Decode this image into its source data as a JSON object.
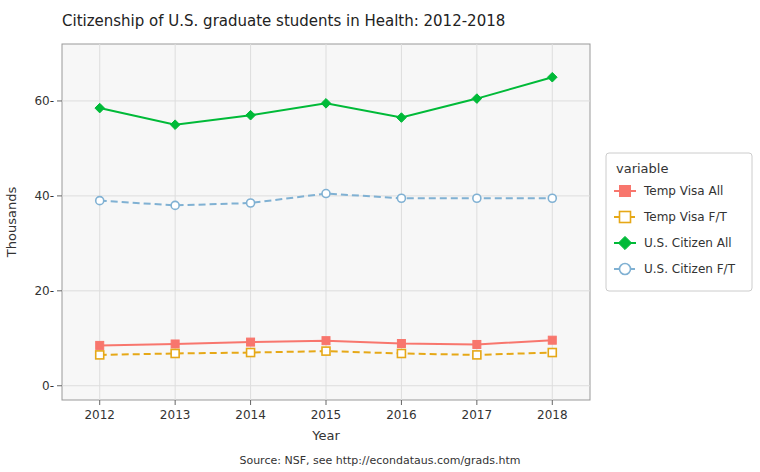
{
  "chart_data": {
    "type": "line",
    "title": "Citizenship of U.S. graduate students in Health: 2012-2018",
    "x_label": "Year",
    "y_label": "Thousands",
    "annotations": [
      "Source: NSF, see http://econdataus.com/grads.htm"
    ],
    "legend_title": "variable",
    "legend": "right",
    "grid": true,
    "x": [
      2012,
      2013,
      2014,
      2015,
      2016,
      2017,
      2018
    ],
    "xlim": [
      2011.5,
      2018.5
    ],
    "xticks": [
      2012,
      2013,
      2014,
      2015,
      2016,
      2017,
      2018
    ],
    "ylim": [
      -3,
      72
    ],
    "yticks": [
      {
        "value": 0,
        "label": "0-"
      },
      {
        "value": 20,
        "label": "20-"
      },
      {
        "value": 40,
        "label": "40-"
      },
      {
        "value": 60,
        "label": "60-"
      }
    ],
    "series": [
      {
        "name": "U.S. Citizen All",
        "color": "#00ba38",
        "marker": "diamond",
        "line_style": "solid",
        "values": [
          58.5,
          55.0,
          57.0,
          59.5,
          56.5,
          60.5,
          65.0
        ]
      },
      {
        "name": "U.S. Citizen F/T",
        "color": "#80b1d3",
        "marker": "open-circle",
        "line_style": "dashed",
        "values": [
          39.0,
          38.0,
          38.5,
          40.5,
          39.5,
          39.5,
          39.5
        ]
      },
      {
        "name": "Temp Visa All",
        "color": "#f8766d",
        "marker": "square",
        "line_style": "solid",
        "values": [
          8.5,
          8.8,
          9.2,
          9.5,
          8.9,
          8.7,
          9.6
        ]
      },
      {
        "name": "Temp Visa F/T",
        "color": "#e6a817",
        "marker": "open-square",
        "line_style": "dashed",
        "values": [
          6.5,
          6.8,
          7.0,
          7.3,
          6.8,
          6.5,
          7.0
        ]
      }
    ]
  }
}
